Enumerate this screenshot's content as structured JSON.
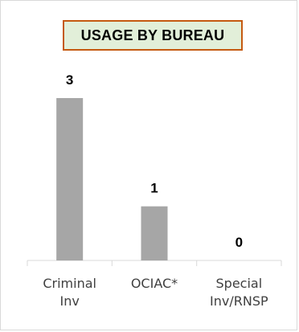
{
  "chart_data": {
    "type": "bar",
    "title": "USAGE BY BUREAU",
    "categories": [
      [
        "Criminal",
        "Inv"
      ],
      [
        "OCIAC*"
      ],
      [
        "Special",
        "Inv/RNSP"
      ]
    ],
    "values": [
      3,
      1,
      0
    ],
    "ylim": [
      0,
      3
    ],
    "grid": false,
    "legend": "none",
    "colors": {
      "bar": "#a6a6a6",
      "axis": "#d9d9d9",
      "title_fill": "#e2efd9",
      "title_border": "#c55a11",
      "category_text": "#404040"
    }
  }
}
